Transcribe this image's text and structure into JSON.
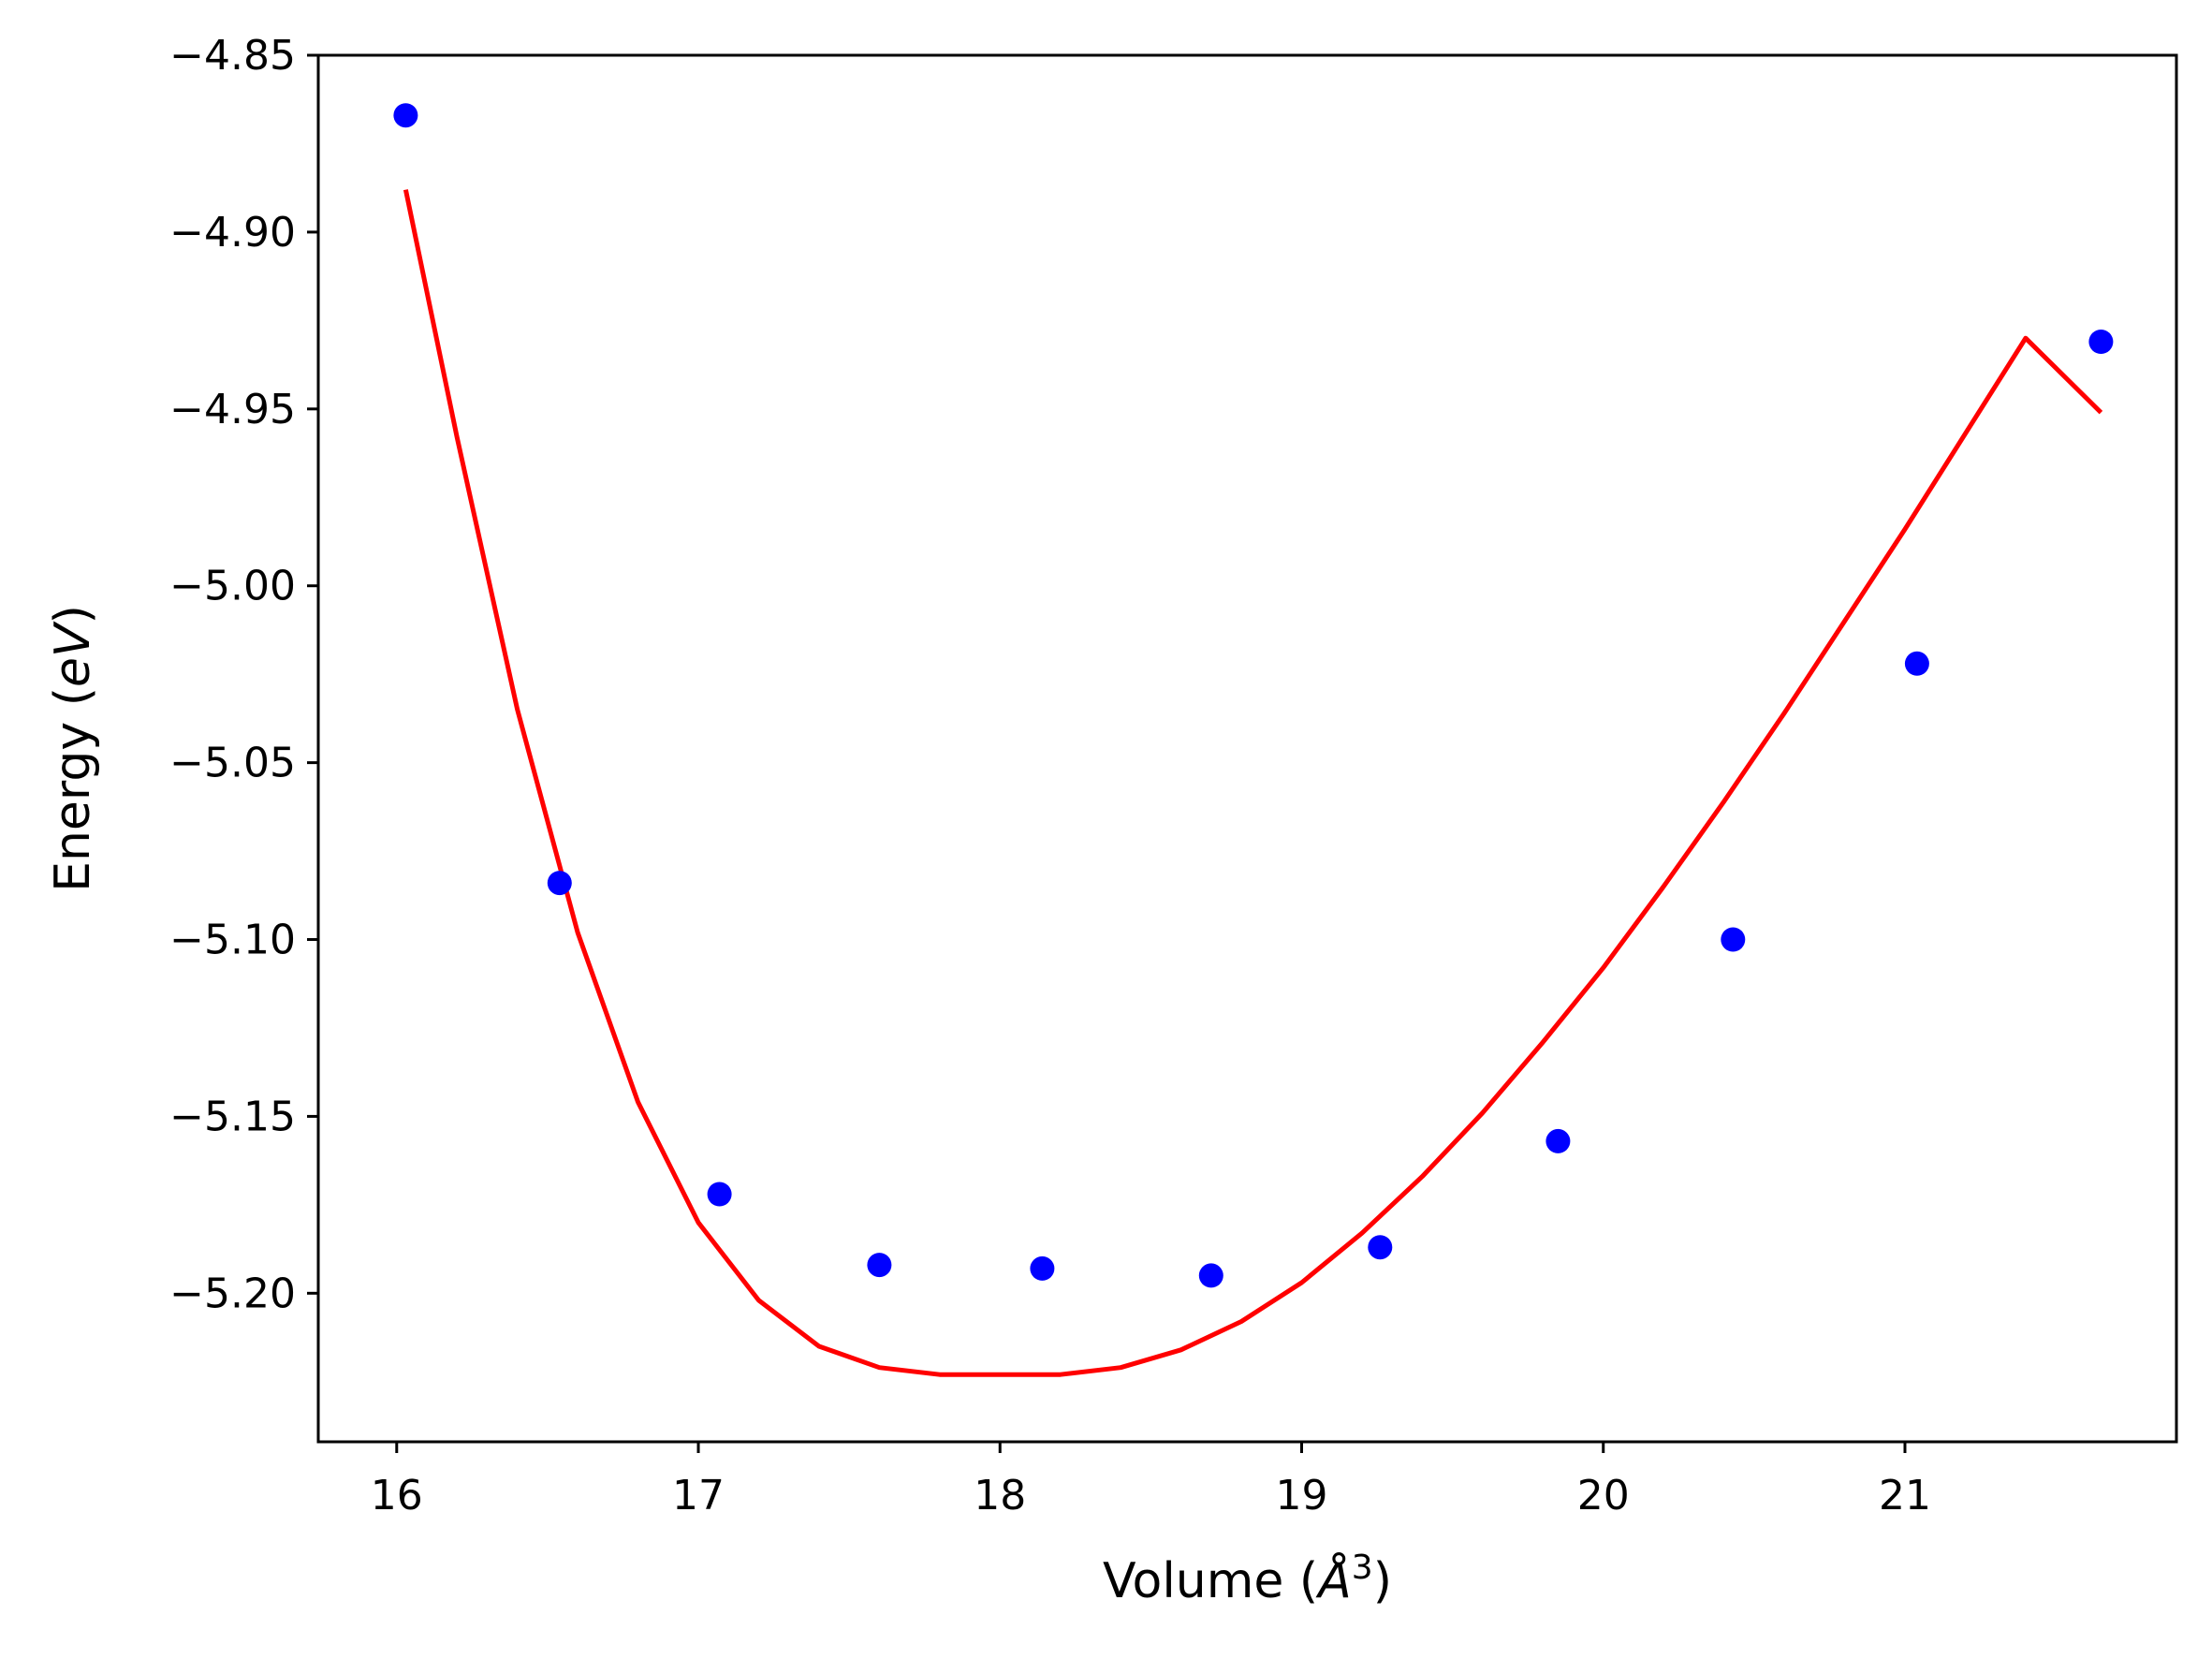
{
  "chart_data": {
    "type": "scatter",
    "title": "",
    "xlabel": "Volume (",
    "xlabel_symbol": "Å",
    "xlabel_exponent": "3",
    "xlabel_close": ")",
    "ylabel": "Energy (",
    "ylabel_unit": "eV",
    "ylabel_close": ")",
    "xlim": [
      15.74,
      21.9
    ],
    "ylim": [
      -5.242,
      -4.85
    ],
    "xticks": [
      16,
      17,
      18,
      19,
      20,
      21
    ],
    "xtick_labels": [
      "16",
      "17",
      "18",
      "19",
      "20",
      "21"
    ],
    "yticks": [
      -4.85,
      -4.9,
      -4.95,
      -5.0,
      -5.05,
      -5.1,
      -5.15,
      -5.2
    ],
    "ytick_labels": [
      "−4.85",
      "−4.90",
      "−4.95",
      "−5.00",
      "−5.05",
      "−5.10",
      "−5.15",
      "−5.20"
    ],
    "grid": false,
    "series": [
      {
        "kind": "scatter",
        "color": "#0000ff",
        "x": [
          16.03,
          16.54,
          17.07,
          17.6,
          18.14,
          18.7,
          19.26,
          19.85,
          20.43,
          21.04,
          21.65
        ],
        "y": [
          -4.867,
          -5.084,
          -5.172,
          -5.192,
          -5.193,
          -5.195,
          -5.187,
          -5.157,
          -5.1,
          -5.022,
          -4.931
        ]
      },
      {
        "kind": "line",
        "color": "#ff0000",
        "x": [
          16.03,
          16.2,
          16.4,
          16.6,
          16.8,
          17.0,
          17.2,
          17.4,
          17.6,
          17.8,
          18.0,
          18.2,
          18.4,
          18.6,
          18.8,
          19.0,
          19.2,
          19.4,
          19.6,
          19.8,
          20.0,
          20.2,
          20.4,
          20.6,
          20.8,
          21.0,
          21.2,
          21.4,
          21.65
        ],
        "y": [
          -4.888,
          -4.958,
          -5.035,
          -5.098,
          -5.146,
          -5.18,
          -5.202,
          -5.215,
          -5.221,
          -5.223,
          -5.223,
          -5.223,
          -5.221,
          -5.216,
          -5.208,
          -5.197,
          -5.183,
          -5.167,
          -5.149,
          -5.129,
          -5.108,
          -5.085,
          -5.061,
          -5.036,
          -5.01,
          -4.984,
          -4.957,
          -4.93,
          -4.951
        ]
      }
    ]
  }
}
